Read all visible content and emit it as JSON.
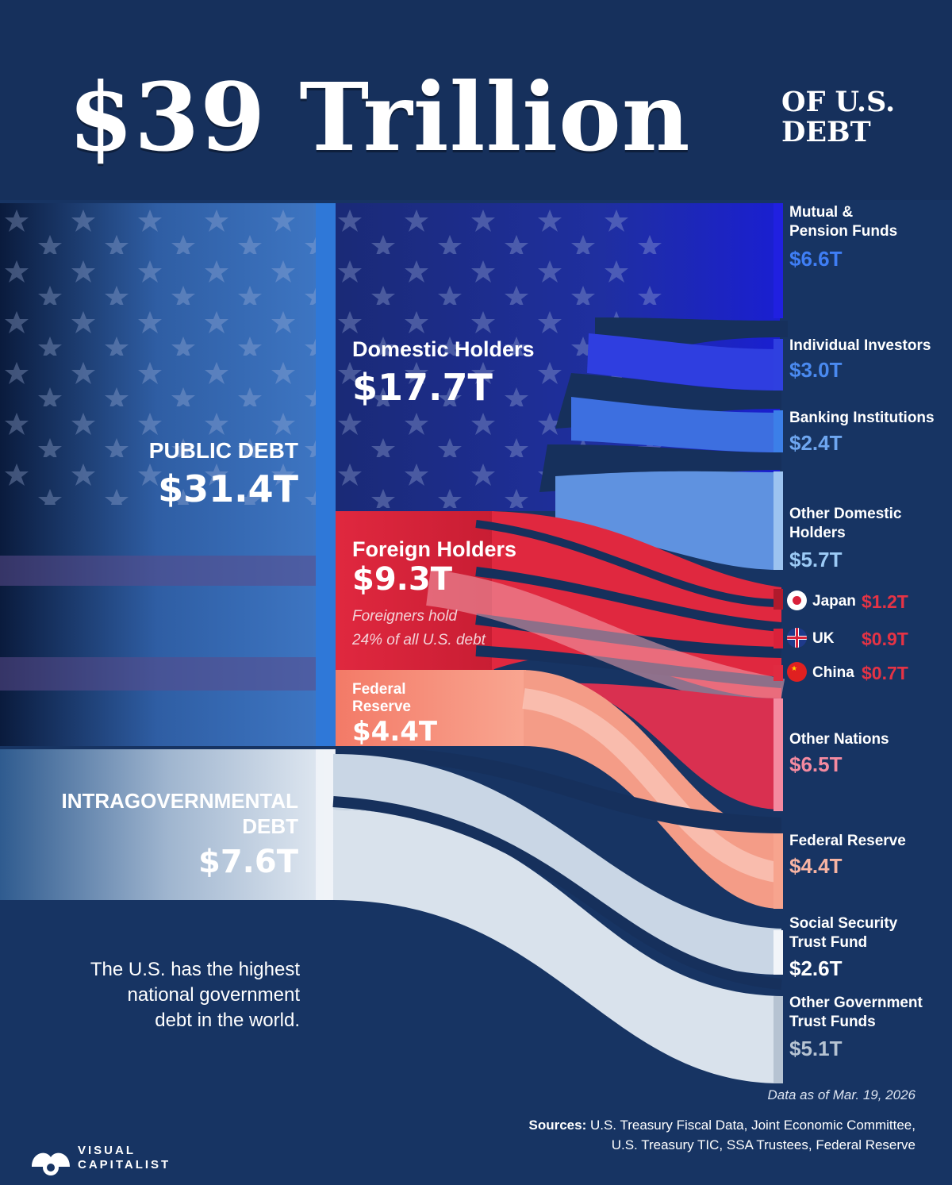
{
  "header": {
    "title_big": "$39 Trillion",
    "title_small_line1": "OF U.S.",
    "title_small_line2": "DEBT"
  },
  "left": {
    "public_label": "PUBLIC DEBT",
    "public_value": "$31.4T",
    "intra_label_line1": "INTRAGOVERNMENTAL",
    "intra_label_line2": "DEBT",
    "intra_value": "$7.6T",
    "tagline_line1": "The U.S. has the highest",
    "tagline_line2": "national government",
    "tagline_line3": "debt in the world."
  },
  "middle": {
    "domestic_label": "Domestic Holders",
    "domestic_value": "$17.7T",
    "foreign_label": "Foreign Holders",
    "foreign_value": "$9.3T",
    "foreign_note_line1": "Foreigners hold",
    "foreign_note_line2": "24% of all U.S. debt",
    "fed_label_line1": "Federal",
    "fed_label_line2": "Reserve",
    "fed_value": "$4.4T"
  },
  "right": {
    "mutual_line1": "Mutual &",
    "mutual_line2": "Pension Funds",
    "mutual_value": "$6.6T",
    "individual": "Individual Investors",
    "individual_value": "$3.0T",
    "banking": "Banking Institutions",
    "banking_value": "$2.4T",
    "other_dom_line1": "Other Domestic",
    "other_dom_line2": "Holders",
    "other_dom_value": "$5.7T",
    "japan": "Japan",
    "japan_value": "$1.2T",
    "uk": "UK",
    "uk_value": "$0.9T",
    "china": "China",
    "china_value": "$0.7T",
    "other_nations": "Other Nations",
    "other_nations_value": "$6.5T",
    "fed": "Federal Reserve",
    "fed_value": "$4.4T",
    "ss_line1": "Social Security",
    "ss_line2": "Trust Fund",
    "ss_value": "$2.6T",
    "ogt_line1": "Other Government",
    "ogt_line2": "Trust Funds",
    "ogt_value": "$5.1T"
  },
  "footer": {
    "date": "Data as of Mar. 19, 2026",
    "sources_label": "Sources:",
    "sources_line1": "U.S. Treasury Fiscal Data, Joint Economic Committee,",
    "sources_line2": "U.S. Treasury TIC, SSA Trustees, Federal Reserve",
    "logo_line1": "VISUAL",
    "logo_line2": "CAPITALIST"
  },
  "colors": {
    "background": "#173463",
    "domestic": "#1f2f9c",
    "foreign": "#d9213a",
    "fed": "#f08a7a",
    "intra": "#dfe7f0"
  }
}
